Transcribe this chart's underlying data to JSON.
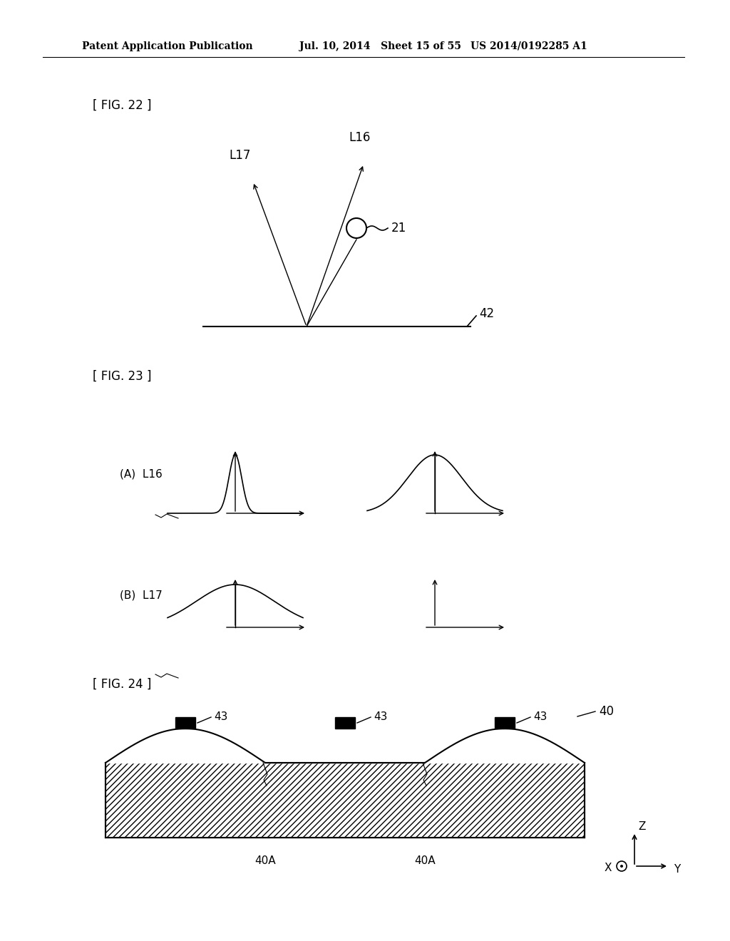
{
  "bg_color": "#ffffff",
  "text_color": "#000000",
  "header_text_left": "Patent Application Publication",
  "header_text_mid": "Jul. 10, 2014   Sheet 15 of 55",
  "header_text_right": "US 2014/0192285 A1",
  "fig22_label": "[ FIG. 22 ]",
  "fig23_label": "[ FIG. 23 ]",
  "fig24_label": "[ FIG. 24 ]"
}
